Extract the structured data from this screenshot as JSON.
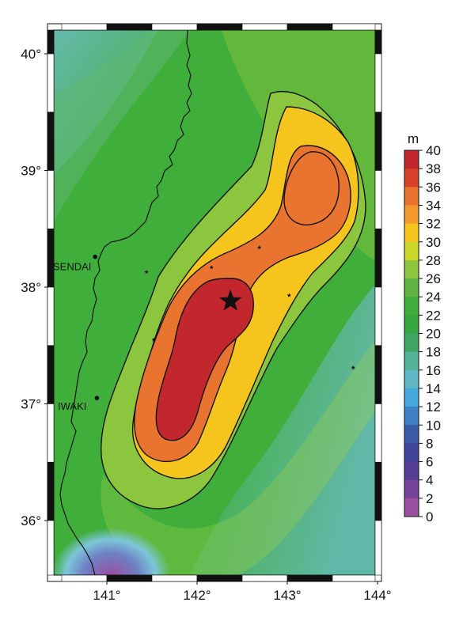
{
  "map": {
    "x_ticks": [
      "141°",
      "142°",
      "143°",
      "144°"
    ],
    "y_ticks": [
      "40°",
      "39°",
      "38°",
      "37°",
      "36°"
    ],
    "cities": [
      {
        "name": "SENDAI",
        "lon": 140.87,
        "lat": 38.26
      },
      {
        "name": "IWAKI",
        "lon": 140.89,
        "lat": 37.05
      }
    ],
    "epicenter": {
      "lon": 142.37,
      "lat": 37.88
    },
    "stations": [
      {
        "lon": 141.44,
        "lat": 38.13
      },
      {
        "lon": 142.16,
        "lat": 38.17
      },
      {
        "lon": 142.69,
        "lat": 38.34
      },
      {
        "lon": 143.02,
        "lat": 37.93
      },
      {
        "lon": 141.52,
        "lat": 37.55
      },
      {
        "lon": 143.73,
        "lat": 37.31
      }
    ],
    "colors": {
      "background_green": "#3fae3a",
      "peak_red": "#c1272d",
      "orange": "#e8742f",
      "yellow": "#f5c51e",
      "light_green": "#8cc63f",
      "cyan": "#5fb7c6",
      "purple": "#9b4f9e"
    }
  },
  "legend": {
    "unit": "m",
    "ticks": [
      "40",
      "38",
      "36",
      "34",
      "32",
      "30",
      "28",
      "26",
      "24",
      "22",
      "20",
      "18",
      "16",
      "14",
      "12",
      "10",
      "8",
      "6",
      "4",
      "2",
      "0"
    ],
    "colors": [
      "#c1272d",
      "#d7412a",
      "#e8742f",
      "#f29a2e",
      "#f5c51e",
      "#cdd62b",
      "#8cc63f",
      "#5fb53f",
      "#3fae3a",
      "#36a640",
      "#3fa763",
      "#55b39a",
      "#5fb7c6",
      "#45a8dc",
      "#3c7fc4",
      "#3b5ba8",
      "#40449a",
      "#563d96",
      "#78439a",
      "#9b4f9e"
    ]
  }
}
